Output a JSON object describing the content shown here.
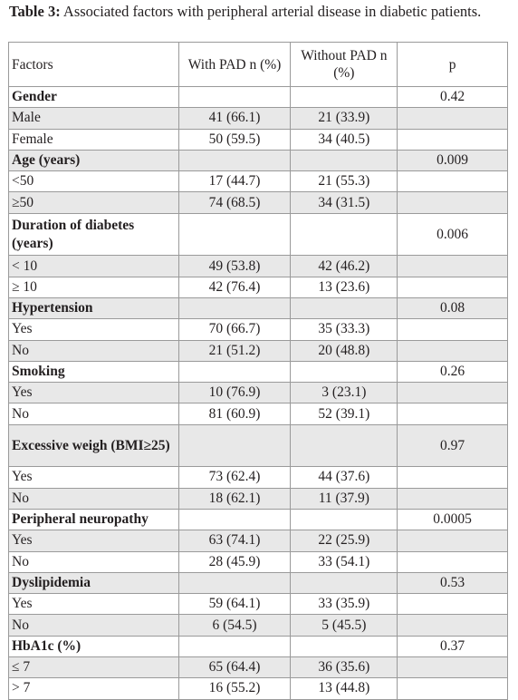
{
  "caption": {
    "label": "Table 3:",
    "text": " Associated factors with peripheral arterial disease in diabetic patients."
  },
  "table": {
    "headers": [
      "Factors",
      "With PAD n (%)",
      "Without PAD n (%)",
      "p"
    ],
    "rows": [
      {
        "label": "Gender",
        "with": "",
        "without": "",
        "p": "0.42",
        "category": true
      },
      {
        "label": "Male",
        "with": "41 (66.1)",
        "without": "21 (33.9)",
        "p": ""
      },
      {
        "label": "Female",
        "with": "50 (59.5)",
        "without": "34 (40.5)",
        "p": ""
      },
      {
        "label": "Age (years)",
        "with": "",
        "without": "",
        "p": "0.009",
        "category": true
      },
      {
        "label": "<50",
        "with": "17 (44.7)",
        "without": "21 (55.3)",
        "p": ""
      },
      {
        "label": "≥50",
        "with": "74 (68.5)",
        "without": "34 (31.5)",
        "p": ""
      },
      {
        "label": "Duration of diabetes (years)",
        "with": "",
        "without": "",
        "p": "0.006",
        "category": true,
        "tall": true
      },
      {
        "label": "< 10",
        "with": "49 (53.8)",
        "without": "42 (46.2)",
        "p": ""
      },
      {
        "label": "≥ 10",
        "with": "42 (76.4)",
        "without": "13 (23.6)",
        "p": ""
      },
      {
        "label": "Hypertension",
        "with": "",
        "without": "",
        "p": "0.08",
        "category": true
      },
      {
        "label": "Yes",
        "with": "70 (66.7)",
        "without": "35 (33.3)",
        "p": ""
      },
      {
        "label": "No",
        "with": "21 (51.2)",
        "without": "20 (48.8)",
        "p": ""
      },
      {
        "label": "Smoking",
        "with": "",
        "without": "",
        "p": "0.26",
        "category": true
      },
      {
        "label": "Yes",
        "with": "10 (76.9)",
        "without": "3 (23.1)",
        "p": ""
      },
      {
        "label": "No",
        "with": "81 (60.9)",
        "without": "52 (39.1)",
        "p": ""
      },
      {
        "label": "Excessive weigh (BMI≥25)",
        "with": "",
        "without": "",
        "p": "0.97",
        "category": true,
        "tall": true
      },
      {
        "label": "Yes",
        "with": "73 (62.4)",
        "without": "44 (37.6)",
        "p": ""
      },
      {
        "label": "No",
        "with": "18 (62.1)",
        "without": "11 (37.9)",
        "p": ""
      },
      {
        "label": "Peripheral neuropathy",
        "with": "",
        "without": "",
        "p": "0.0005",
        "category": true
      },
      {
        "label": "Yes",
        "with": "63 (74.1)",
        "without": "22 (25.9)",
        "p": ""
      },
      {
        "label": "No",
        "with": "28 (45.9)",
        "without": "33 (54.1)",
        "p": ""
      },
      {
        "label": "Dyslipidemia",
        "with": "",
        "without": "",
        "p": "0.53",
        "category": true
      },
      {
        "label": "Yes",
        "with": "59 (64.1)",
        "without": "33 (35.9)",
        "p": ""
      },
      {
        "label": "No",
        "with": "6 (54.5)",
        "without": "5 (45.5)",
        "p": ""
      },
      {
        "label": "HbA1c (%)",
        "with": "",
        "without": "",
        "p": "0.37",
        "category": true
      },
      {
        "label": "≤ 7",
        "with": "65 (64.4)",
        "without": "36 (35.6)",
        "p": ""
      },
      {
        "label": "> 7",
        "with": "16 (55.2)",
        "without": "13 (44.8)",
        "p": ""
      }
    ]
  },
  "colors": {
    "shade": "#e8e8e8",
    "border": "#9a9a9a",
    "text": "#231f20"
  }
}
